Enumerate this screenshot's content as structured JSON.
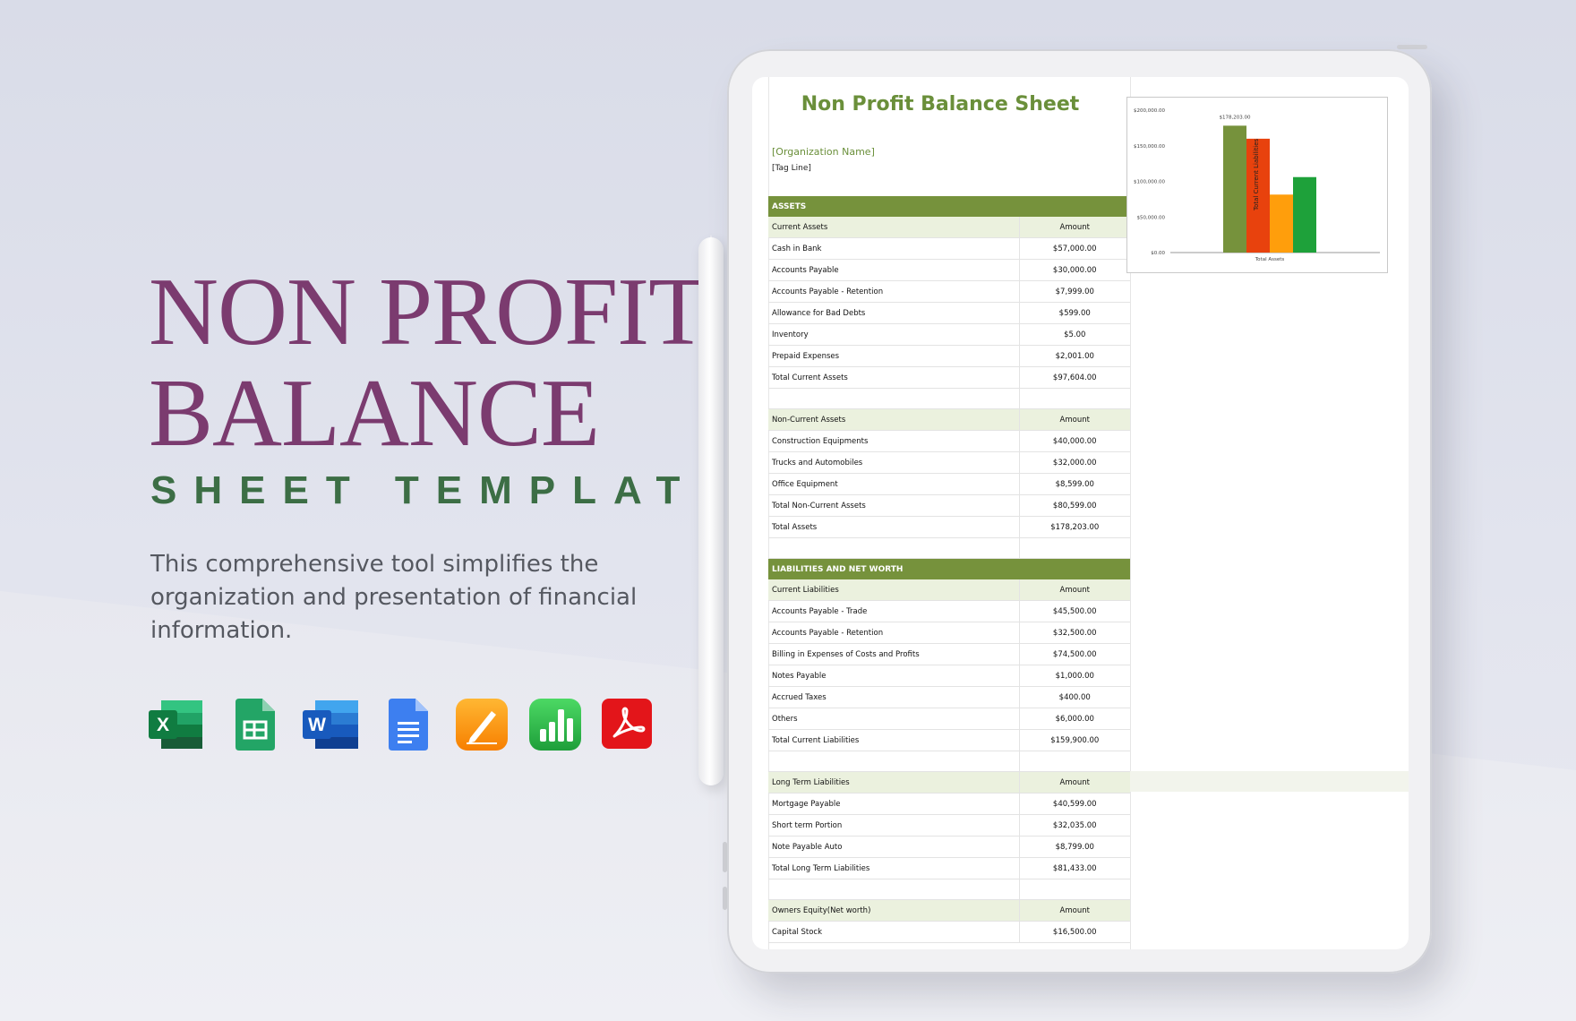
{
  "hero": {
    "title_line1": "NON PROFIT",
    "title_line2": "BALANCE",
    "subtitle": "SHEET TEMPLATE",
    "description": "This comprehensive tool simplifies the organization and presentation of financial information."
  },
  "app_icons": [
    {
      "name": "excel-icon",
      "letter": "X",
      "color": "#1e7145"
    },
    {
      "name": "google-sheets-icon",
      "letter": "",
      "color": "#21a366"
    },
    {
      "name": "word-icon",
      "letter": "W",
      "color": "#2b579a"
    },
    {
      "name": "google-docs-icon",
      "letter": "",
      "color": "#4285f4"
    },
    {
      "name": "pages-icon",
      "letter": "",
      "color": "#f7a020"
    },
    {
      "name": "numbers-icon",
      "letter": "",
      "color": "#2bb24c"
    },
    {
      "name": "acrobat-pdf-icon",
      "letter": "",
      "color": "#e3151a"
    }
  ],
  "sheet": {
    "title": "Non Profit Balance Sheet",
    "org_name": "[Organization Name]",
    "tag_line": "[Tag Line]",
    "assets_header": "ASSETS",
    "current_assets": {
      "label": "Current Assets",
      "amount_header": "Amount",
      "rows": [
        {
          "item": "Cash in Bank",
          "amount": "$57,000.00"
        },
        {
          "item": "Accounts Payable",
          "amount": "$30,000.00"
        },
        {
          "item": "Accounts Payable - Retention",
          "amount": "$7,999.00"
        },
        {
          "item": "Allowance for Bad Debts",
          "amount": "$599.00"
        },
        {
          "item": "Inventory",
          "amount": "$5.00"
        },
        {
          "item": "Prepaid Expenses",
          "amount": "$2,001.00"
        },
        {
          "item": "Total Current Assets",
          "amount": "$97,604.00"
        }
      ]
    },
    "non_current_assets": {
      "label": "Non-Current Assets",
      "amount_header": "Amount",
      "rows": [
        {
          "item": "Construction Equipments",
          "amount": "$40,000.00"
        },
        {
          "item": "Trucks and Automobiles",
          "amount": "$32,000.00"
        },
        {
          "item": "Office Equipment",
          "amount": "$8,599.00"
        },
        {
          "item": "Total Non-Current Assets",
          "amount": "$80,599.00"
        },
        {
          "item": "Total Assets",
          "amount": "$178,203.00"
        }
      ]
    },
    "liabilities_header": "LIABILITIES AND NET WORTH",
    "current_liabilities": {
      "label": "Current Liabilities",
      "amount_header": "Amount",
      "rows": [
        {
          "item": "Accounts Payable - Trade",
          "amount": "$45,500.00"
        },
        {
          "item": "Accounts Payable - Retention",
          "amount": "$32,500.00"
        },
        {
          "item": "Billing in Expenses of Costs and Profits",
          "amount": "$74,500.00"
        },
        {
          "item": "Notes Payable",
          "amount": "$1,000.00"
        },
        {
          "item": "Accrued Taxes",
          "amount": "$400.00"
        },
        {
          "item": "Others",
          "amount": "$6,000.00"
        },
        {
          "item": "Total Current Liabilities",
          "amount": "$159,900.00"
        }
      ]
    },
    "long_term_liabilities": {
      "label": "Long Term Liabilities",
      "amount_header": "Amount",
      "rows": [
        {
          "item": "Mortgage Payable",
          "amount": "$40,599.00"
        },
        {
          "item": "Short term Portion",
          "amount": "$32,035.00"
        },
        {
          "item": "Note Payable Auto",
          "amount": "$8,799.00"
        },
        {
          "item": "Total Long Term Liabilities",
          "amount": "$81,433.00"
        }
      ]
    },
    "owners_equity": {
      "label": "Owners Equity(Net worth)",
      "amount_header": "Amount",
      "rows": [
        {
          "item": "Capital Stock",
          "amount": "$16,500.00"
        }
      ]
    }
  },
  "chart_data": {
    "type": "bar",
    "categories": [
      "Total Assets"
    ],
    "xlabel": "Total Assets",
    "ylim": [
      0,
      200000
    ],
    "yticks": [
      "$0.00",
      "$50,000.00",
      "$100,000.00",
      "$150,000.00",
      "$200,000.00"
    ],
    "ytick_values": [
      0,
      50000,
      100000,
      150000,
      200000
    ],
    "series": [
      {
        "value": 178203,
        "color": "#76923c",
        "data_label": "$178,203.00"
      },
      {
        "value": 159900,
        "color": "#e8420d",
        "data_label": "Total Current Liabilities"
      },
      {
        "value": 81433,
        "color": "#ff9e0c",
        "data_label": ""
      },
      {
        "value": 106000,
        "color": "#1ea13a",
        "data_label": ""
      }
    ]
  }
}
